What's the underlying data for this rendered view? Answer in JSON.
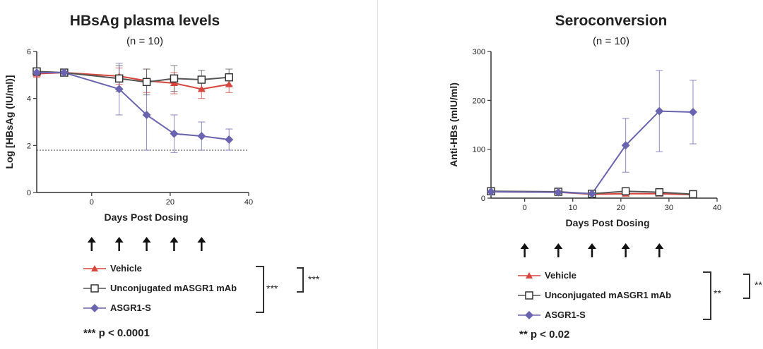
{
  "chart_data": [
    {
      "type": "line",
      "title": "HBsAg plasma levels",
      "subtitle": "(n = 10)",
      "xlabel": "Days Post Dosing",
      "ylabel": "Log [HBsAg (IU/ml)]",
      "xlim": [
        -14,
        40
      ],
      "ylim": [
        0,
        6
      ],
      "xticks": [
        0,
        20,
        40
      ],
      "yticks": [
        0,
        2,
        4,
        6
      ],
      "reference_line_y": 1.8,
      "dosing_days": [
        0,
        7,
        14,
        21,
        28
      ],
      "series": [
        {
          "name": "Vehicle",
          "color": "#d9443c",
          "marker": "triangle",
          "x": [
            -14,
            -7,
            7,
            14,
            21,
            28,
            35
          ],
          "y": [
            5.05,
            5.1,
            4.95,
            4.75,
            4.65,
            4.4,
            4.6
          ],
          "err": [
            0.15,
            0.1,
            0.35,
            0.5,
            0.45,
            0.4,
            0.35
          ]
        },
        {
          "name": "Unconjugated mASGR1 mAb",
          "color": "#555555",
          "marker": "square",
          "x": [
            -14,
            -7,
            7,
            14,
            21,
            28,
            35
          ],
          "y": [
            5.15,
            5.1,
            4.85,
            4.7,
            4.85,
            4.8,
            4.9
          ],
          "err": [
            0.15,
            0.1,
            0.55,
            0.55,
            0.55,
            0.4,
            0.35
          ]
        },
        {
          "name": "ASGR1-S",
          "color": "#6a64b0",
          "marker": "diamond",
          "x": [
            -14,
            -7,
            7,
            14,
            21,
            28,
            35
          ],
          "y": [
            5.1,
            5.1,
            4.4,
            3.3,
            2.5,
            2.4,
            2.25
          ],
          "err": [
            0.1,
            0.05,
            1.1,
            1.5,
            0.8,
            0.6,
            0.45
          ]
        }
      ],
      "significance_inner": "***",
      "significance_outer": "***",
      "p_value_note": "*** p < 0.0001"
    },
    {
      "type": "line",
      "title": "Seroconversion",
      "subtitle": "(n = 10)",
      "xlabel": "Days Post Dosing",
      "ylabel": "Anti-HBs (mIU/ml)",
      "xlim": [
        -7,
        40
      ],
      "ylim": [
        0,
        300
      ],
      "xticks": [
        0,
        10,
        20,
        30,
        40
      ],
      "yticks": [
        0,
        100,
        200,
        300
      ],
      "dosing_days": [
        0,
        7,
        14,
        21,
        28
      ],
      "series": [
        {
          "name": "Vehicle",
          "color": "#d9443c",
          "marker": "triangle",
          "x": [
            -7,
            7,
            14,
            21,
            28,
            35
          ],
          "y": [
            13,
            12,
            8,
            9,
            9,
            7
          ],
          "err": [
            0,
            0,
            0,
            0,
            0,
            0
          ]
        },
        {
          "name": "Unconjugated mASGR1 mAb",
          "color": "#555555",
          "marker": "square",
          "x": [
            -7,
            7,
            14,
            21,
            28,
            35
          ],
          "y": [
            14,
            13,
            9,
            14,
            12,
            8
          ],
          "err": [
            0,
            0,
            0,
            0,
            0,
            0
          ]
        },
        {
          "name": "ASGR1-S",
          "color": "#6a64b0",
          "marker": "diamond",
          "x": [
            -7,
            7,
            14,
            21,
            28,
            35
          ],
          "y": [
            13,
            12,
            9,
            108,
            178,
            176
          ],
          "err": [
            0,
            0,
            0,
            55,
            83,
            65
          ]
        }
      ],
      "significance_inner": "**",
      "significance_outer": "**",
      "p_value_note": "** p < 0.02"
    }
  ]
}
